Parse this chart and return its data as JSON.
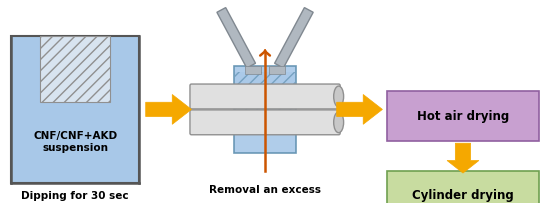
{
  "bg_color": "#ffffff",
  "arrow_color": "#F5A800",
  "tank_fill_color": "#A8C8E8",
  "tank_outline_color": "#555555",
  "squeeze_fill_color": "#A8C8E8",
  "squeeze_outline_color": "#6090B0",
  "hot_air_box_color": "#C8A0D0",
  "hot_air_box_edge": "#9060A0",
  "cylinder_box_color": "#C8DCA0",
  "cylinder_box_edge": "#70A050",
  "vertical_arrow_color": "#CC5500",
  "roller_fill": "#E0E0E0",
  "roller_edge": "#909090",
  "blade_fill": "#B0B8C0",
  "blade_edge": "#808890",
  "hatch_fill": "#D8E4F0",
  "labels": {
    "dipping": "Dipping for 30 sec",
    "removal": "Removal an excess",
    "suspension": "CNF/CNF+AKD\nsuspension",
    "hot_air": "Hot air drying",
    "cylinder": "Cylinder drying"
  },
  "figsize": [
    5.5,
    2.04
  ],
  "dpi": 100
}
